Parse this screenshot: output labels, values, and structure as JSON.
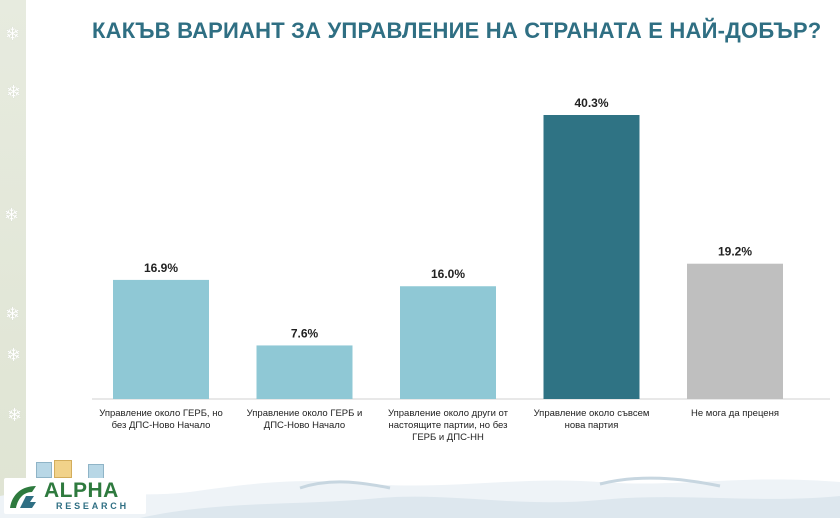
{
  "page": {
    "title": "КАКЪВ ВАРИАНТ ЗА УПРАВЛЕНИЕ НА СТРАНАТА Е НАЙ-ДОБЪР?"
  },
  "logo": {
    "alpha": "ALPHA",
    "research": "RESEARCH"
  },
  "colors": {
    "title": "#2f6f83",
    "light_bar": "#8fc8d5",
    "dark_bar": "#2f7384",
    "gray_bar": "#bfbfbf"
  },
  "chart_data": {
    "type": "bar",
    "title": "КАКЪВ ВАРИАНТ ЗА УПРАВЛЕНИЕ НА СТРАНАТА Е НАЙ-ДОБЪР?",
    "categories": [
      "Управление около ГЕРБ, но без ДПС-Ново Начало",
      "Управление около ГЕРБ и ДПС-Ново Начало",
      "Управление около други от настоящите партии, но без ГЕРБ и ДПС-НН",
      "Управление около съвсем нова партия",
      "Не мога да преценя"
    ],
    "values": [
      16.9,
      7.6,
      16.0,
      40.3,
      19.2
    ],
    "value_labels": [
      "16.9%",
      "7.6%",
      "16.0%",
      "40.3%",
      "19.2%"
    ],
    "bar_colors": [
      "#8fc8d5",
      "#8fc8d5",
      "#8fc8d5",
      "#2f7384",
      "#bfbfbf"
    ],
    "ylim": [
      0,
      40.3
    ],
    "grid": false,
    "legend": "none"
  }
}
